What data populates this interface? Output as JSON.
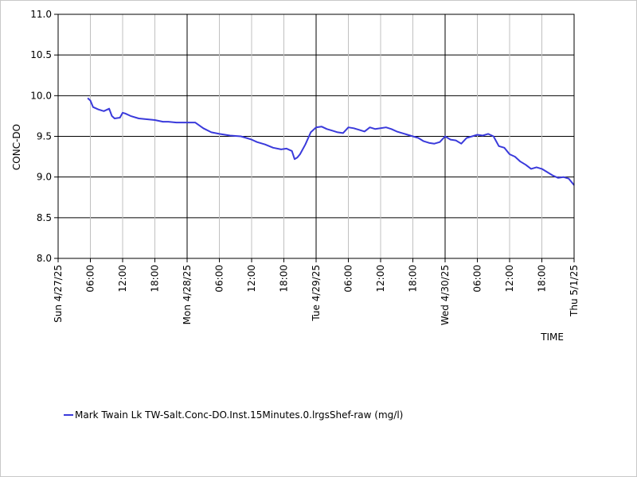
{
  "chart_data": {
    "type": "line",
    "title": "",
    "xlabel": "TIME",
    "ylabel": "CONC-DO",
    "ylim": [
      8.0,
      11.0
    ],
    "yticks": [
      "8.0",
      "8.5",
      "9.0",
      "9.5",
      "10.0",
      "10.5",
      "11.0"
    ],
    "xlim": [
      "2025-04-27T00:00",
      "2025-05-01T00:00"
    ],
    "xticks": [
      {
        "label": "Sun 4/27/25",
        "t": "2025-04-27T00:00",
        "major": true
      },
      {
        "label": "06:00",
        "t": "2025-04-27T06:00",
        "major": false
      },
      {
        "label": "12:00",
        "t": "2025-04-27T12:00",
        "major": false
      },
      {
        "label": "18:00",
        "t": "2025-04-27T18:00",
        "major": false
      },
      {
        "label": "Mon 4/28/25",
        "t": "2025-04-28T00:00",
        "major": true
      },
      {
        "label": "06:00",
        "t": "2025-04-28T06:00",
        "major": false
      },
      {
        "label": "12:00",
        "t": "2025-04-28T12:00",
        "major": false
      },
      {
        "label": "18:00",
        "t": "2025-04-28T18:00",
        "major": false
      },
      {
        "label": "Tue 4/29/25",
        "t": "2025-04-29T00:00",
        "major": true
      },
      {
        "label": "06:00",
        "t": "2025-04-29T06:00",
        "major": false
      },
      {
        "label": "12:00",
        "t": "2025-04-29T12:00",
        "major": false
      },
      {
        "label": "18:00",
        "t": "2025-04-29T18:00",
        "major": false
      },
      {
        "label": "Wed 4/30/25",
        "t": "2025-04-30T00:00",
        "major": true
      },
      {
        "label": "06:00",
        "t": "2025-04-30T06:00",
        "major": false
      },
      {
        "label": "12:00",
        "t": "2025-04-30T12:00",
        "major": false
      },
      {
        "label": "18:00",
        "t": "2025-04-30T18:00",
        "major": false
      },
      {
        "label": "Thu 5/1/25",
        "t": "2025-05-01T00:00",
        "major": true
      }
    ],
    "legend_position": "bottom-left",
    "grid": true,
    "series": [
      {
        "name": "Mark Twain Lk TW-Salt.Conc-DO.Inst.15Minutes.0.lrgsShef-raw (mg/l)",
        "color": "#3a3adb",
        "x": [
          "2025-04-27T05:30",
          "2025-04-27T06:00",
          "2025-04-27T06:30",
          "2025-04-27T07:30",
          "2025-04-27T08:30",
          "2025-04-27T09:30",
          "2025-04-27T10:00",
          "2025-04-27T10:30",
          "2025-04-27T11:30",
          "2025-04-27T12:00",
          "2025-04-27T12:30",
          "2025-04-27T13:30",
          "2025-04-27T15:00",
          "2025-04-27T16:30",
          "2025-04-27T18:00",
          "2025-04-27T19:30",
          "2025-04-27T20:30",
          "2025-04-27T22:00",
          "2025-04-28T00:00",
          "2025-04-28T01:30",
          "2025-04-28T03:00",
          "2025-04-28T04:30",
          "2025-04-28T06:00",
          "2025-04-28T08:00",
          "2025-04-28T10:00",
          "2025-04-28T11:00",
          "2025-04-28T12:00",
          "2025-04-28T13:00",
          "2025-04-28T14:30",
          "2025-04-28T16:00",
          "2025-04-28T17:30",
          "2025-04-28T18:30",
          "2025-04-28T19:30",
          "2025-04-28T20:00",
          "2025-04-28T20:30",
          "2025-04-28T21:00",
          "2025-04-28T22:00",
          "2025-04-28T23:00",
          "2025-04-29T00:00",
          "2025-04-29T01:00",
          "2025-04-29T02:00",
          "2025-04-29T03:00",
          "2025-04-29T04:00",
          "2025-04-29T05:00",
          "2025-04-29T06:00",
          "2025-04-29T07:00",
          "2025-04-29T08:00",
          "2025-04-29T09:00",
          "2025-04-29T10:00",
          "2025-04-29T11:00",
          "2025-04-29T12:00",
          "2025-04-29T13:00",
          "2025-04-29T14:00",
          "2025-04-29T15:00",
          "2025-04-29T16:00",
          "2025-04-29T17:00",
          "2025-04-29T18:00",
          "2025-04-29T19:00",
          "2025-04-29T20:00",
          "2025-04-29T21:00",
          "2025-04-29T22:00",
          "2025-04-29T23:00",
          "2025-04-30T00:00",
          "2025-04-30T01:00",
          "2025-04-30T02:00",
          "2025-04-30T03:00",
          "2025-04-30T04:00",
          "2025-04-30T05:00",
          "2025-04-30T06:00",
          "2025-04-30T07:00",
          "2025-04-30T08:00",
          "2025-04-30T09:00",
          "2025-04-30T10:00",
          "2025-04-30T11:00",
          "2025-04-30T12:00",
          "2025-04-30T13:00",
          "2025-04-30T14:00",
          "2025-04-30T15:00",
          "2025-04-30T16:00",
          "2025-04-30T17:00",
          "2025-04-30T18:00",
          "2025-04-30T19:00",
          "2025-04-30T20:00",
          "2025-04-30T21:00",
          "2025-04-30T22:00",
          "2025-04-30T23:00",
          "2025-05-01T00:00"
        ],
        "y": [
          9.97,
          9.94,
          9.86,
          9.83,
          9.81,
          9.84,
          9.75,
          9.72,
          9.73,
          9.79,
          9.78,
          9.75,
          9.72,
          9.71,
          9.7,
          9.68,
          9.68,
          9.67,
          9.67,
          9.67,
          9.6,
          9.55,
          9.53,
          9.51,
          9.5,
          9.48,
          9.46,
          9.43,
          9.4,
          9.36,
          9.34,
          9.35,
          9.32,
          9.22,
          9.24,
          9.28,
          9.4,
          9.55,
          9.61,
          9.62,
          9.59,
          9.57,
          9.55,
          9.54,
          9.61,
          9.6,
          9.58,
          9.56,
          9.61,
          9.59,
          9.6,
          9.61,
          9.59,
          9.56,
          9.54,
          9.52,
          9.5,
          9.48,
          9.44,
          9.42,
          9.41,
          9.43,
          9.5,
          9.46,
          9.45,
          9.41,
          9.48,
          9.5,
          9.52,
          9.51,
          9.53,
          9.5,
          9.38,
          9.36,
          9.28,
          9.25,
          9.19,
          9.15,
          9.1,
          9.12,
          9.1,
          9.06,
          9.02,
          8.99,
          9.0,
          8.98,
          8.9
        ]
      }
    ]
  }
}
